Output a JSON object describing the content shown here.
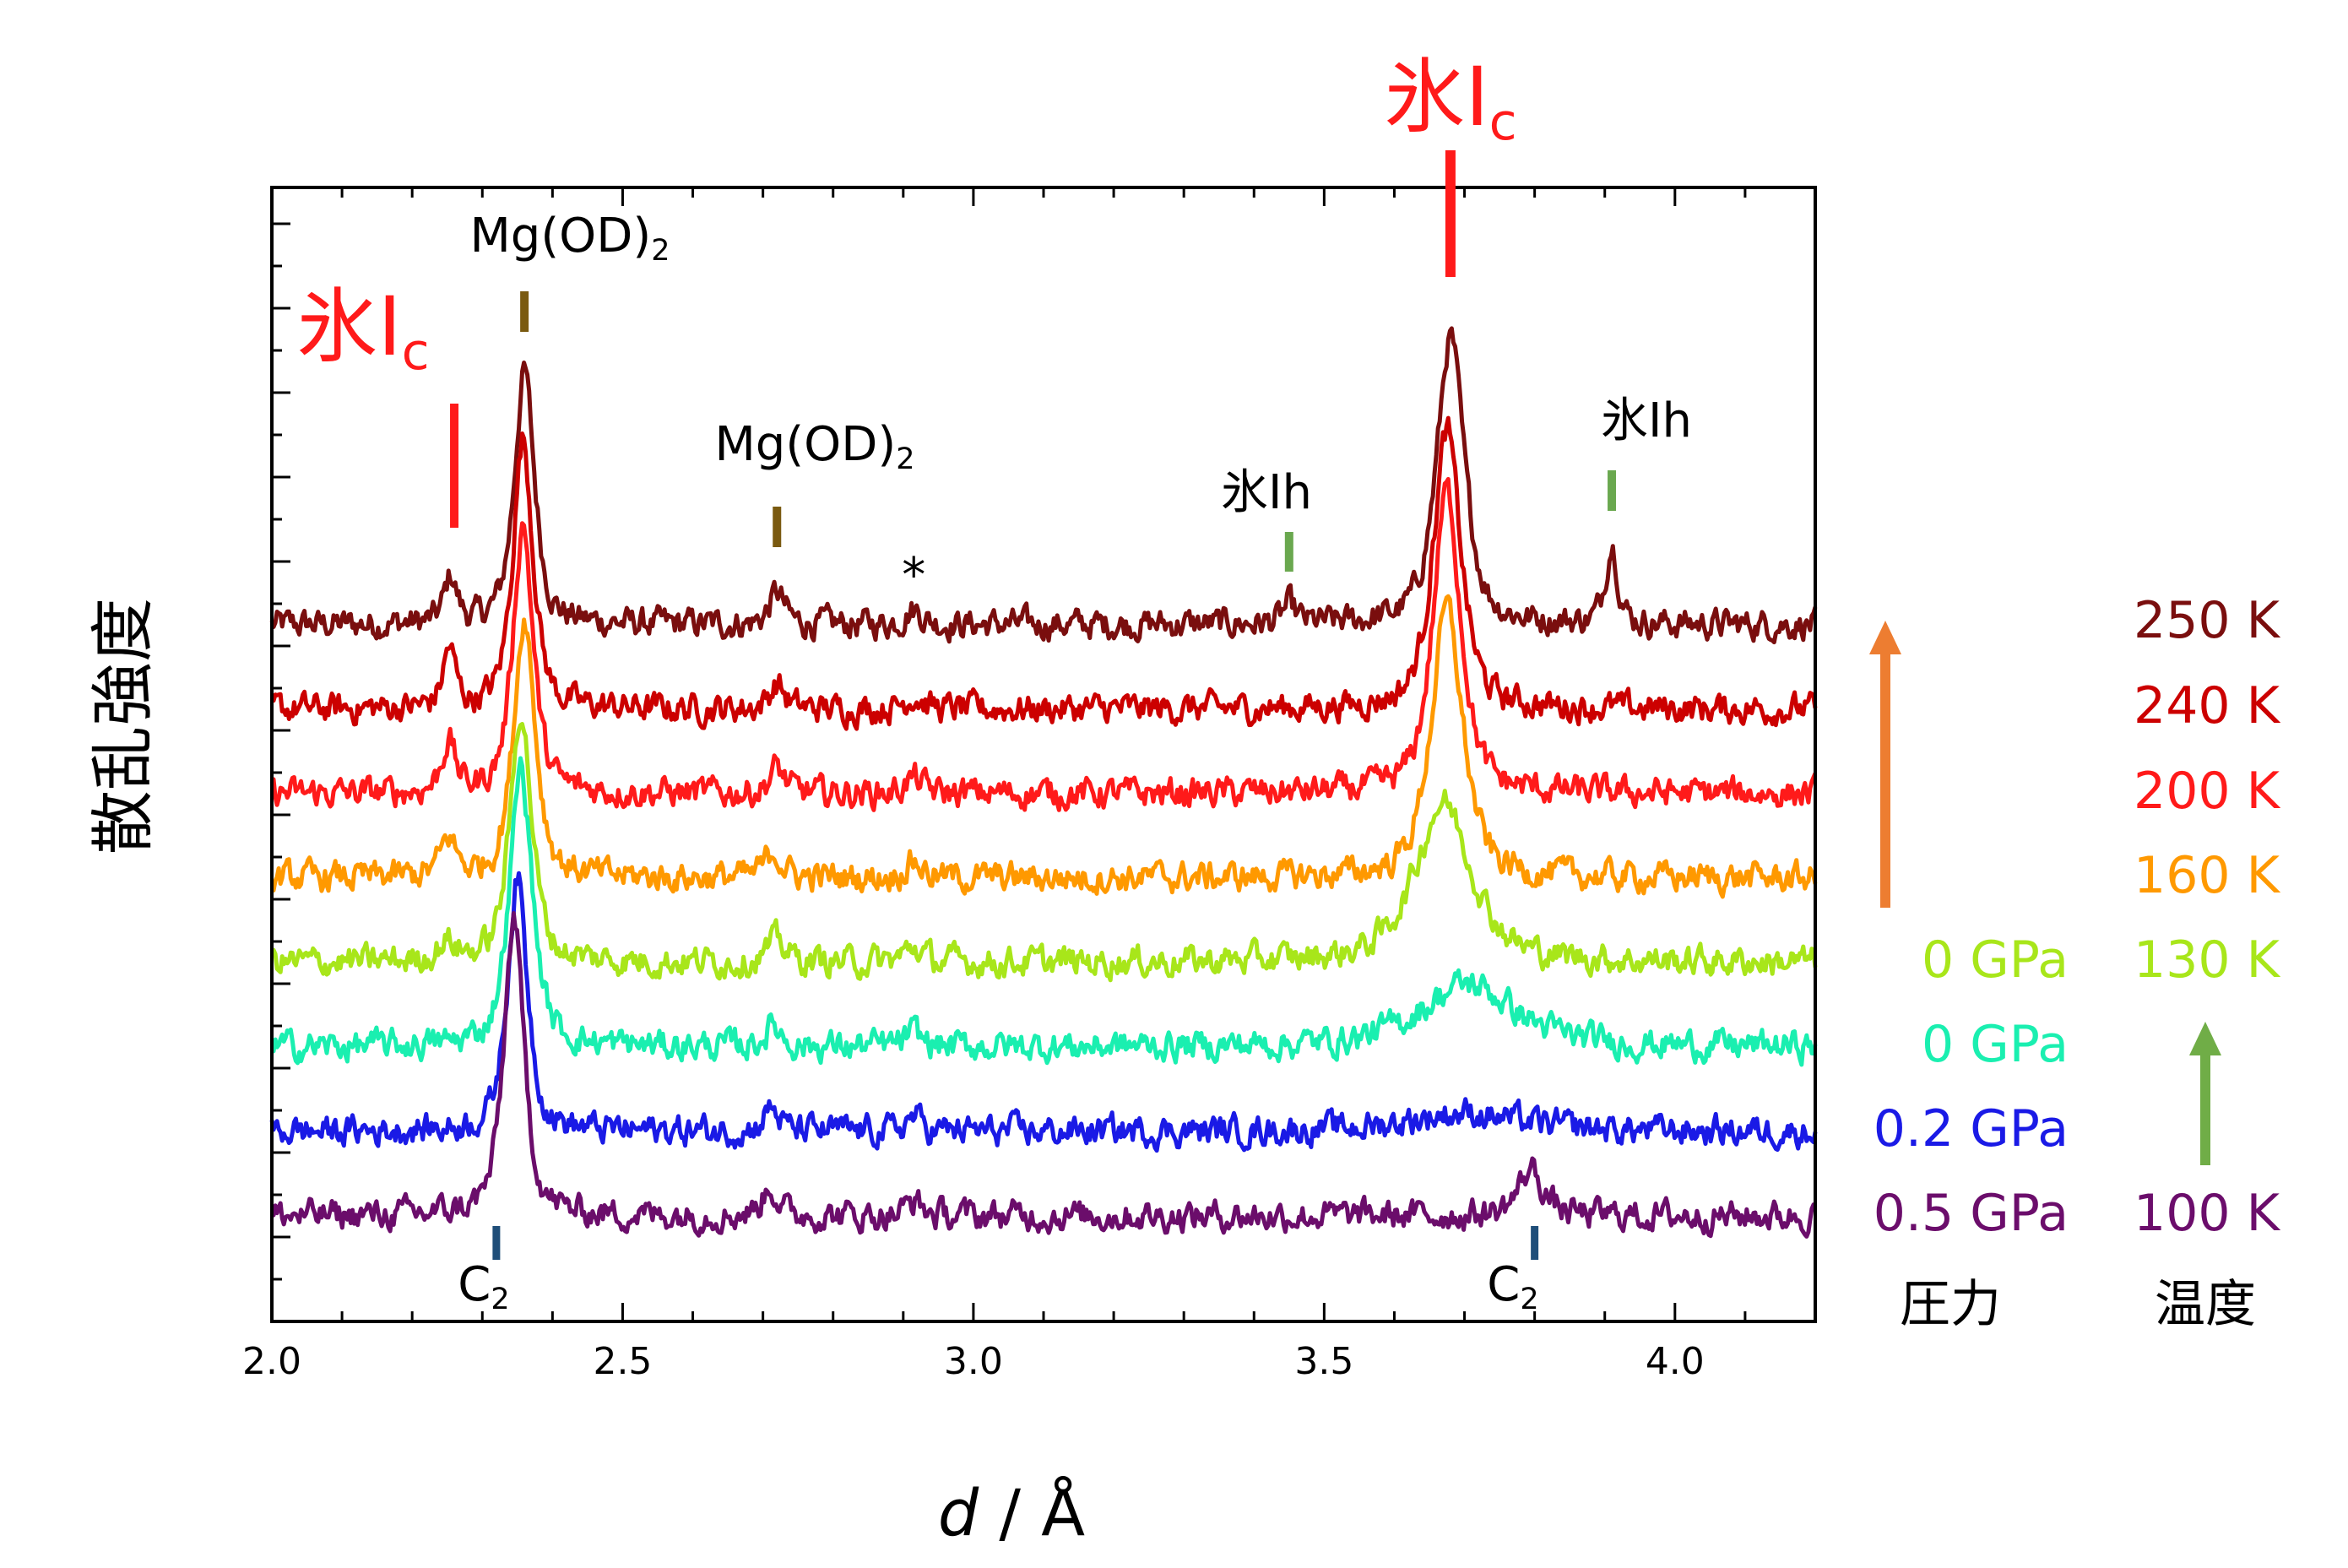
{
  "chart_data": {
    "type": "line",
    "title": "",
    "xlabel_italic": "d",
    "xlabel_rest": " / Å",
    "ylabel": "散乱強度",
    "xlim": [
      2.0,
      4.2
    ],
    "x_ticks": [
      "2.0",
      "2.5",
      "3.0",
      "3.5",
      "4.0"
    ],
    "x_tick_values": [
      2.0,
      2.5,
      3.0,
      3.5,
      4.0
    ],
    "y_ticks_labeled": false,
    "grid": false,
    "series": [
      {
        "pressure": "",
        "temperature": "250 K",
        "color": "#7a0e0e",
        "offset": 7.0,
        "peaks": [
          [
            2.255,
            0.55,
            0.01
          ],
          [
            2.36,
            3.0,
            0.016
          ],
          [
            2.72,
            0.38,
            0.012
          ],
          [
            2.915,
            0.18,
            0.014
          ],
          [
            3.45,
            0.22,
            0.01
          ],
          [
            3.68,
            3.4,
            0.022
          ],
          [
            3.91,
            0.95,
            0.01
          ]
        ]
      },
      {
        "pressure": "",
        "temperature": "240 K",
        "color": "#cc0000",
        "offset": 6.0,
        "peaks": [
          [
            2.253,
            0.7,
            0.01
          ],
          [
            2.358,
            3.2,
            0.016
          ],
          [
            2.72,
            0.3,
            0.012
          ],
          [
            2.915,
            0.16,
            0.014
          ],
          [
            3.675,
            3.3,
            0.022
          ]
        ]
      },
      {
        "pressure": "",
        "temperature": "200 K",
        "color": "#ff1a1a",
        "offset": 5.0,
        "peaks": [
          [
            2.252,
            0.6,
            0.011
          ],
          [
            2.358,
            3.2,
            0.016
          ],
          [
            2.72,
            0.3,
            0.012
          ],
          [
            2.915,
            0.18,
            0.014
          ],
          [
            3.675,
            3.6,
            0.022
          ]
        ]
      },
      {
        "pressure": "",
        "temperature": "160 K",
        "color": "#ff9900",
        "offset": 4.0,
        "peaks": [
          [
            2.252,
            0.45,
            0.012
          ],
          [
            2.36,
            3.1,
            0.017
          ],
          [
            2.715,
            0.32,
            0.013
          ],
          [
            2.915,
            0.2,
            0.014
          ],
          [
            3.675,
            3.2,
            0.025
          ]
        ]
      },
      {
        "pressure": "0 GPa",
        "temperature": "130 K",
        "color": "#a8e61a",
        "offset": 3.0,
        "peaks": [
          [
            2.25,
            0.22,
            0.015
          ],
          [
            2.355,
            3.0,
            0.017
          ],
          [
            2.72,
            0.25,
            0.015
          ],
          [
            2.915,
            0.18,
            0.014
          ],
          [
            3.67,
            1.9,
            0.045
          ]
        ]
      },
      {
        "pressure": "0 GPa",
        "temperature": "",
        "color": "#1aefb0",
        "offset": 2.0,
        "peaks": [
          [
            2.355,
            3.3,
            0.018
          ],
          [
            2.715,
            0.25,
            0.013
          ],
          [
            2.915,
            0.15,
            0.014
          ],
          [
            3.705,
            0.75,
            0.075
          ]
        ]
      },
      {
        "pressure": "0.2 GPa",
        "temperature": "",
        "color": "#1a1ae6",
        "offset": 1.0,
        "peaks": [
          [
            2.35,
            3.0,
            0.016
          ],
          [
            2.712,
            0.28,
            0.012
          ],
          [
            2.915,
            0.18,
            0.012
          ],
          [
            3.7,
            0.22,
            0.09
          ]
        ]
      },
      {
        "pressure": "0.5 GPa",
        "temperature": "100 K",
        "color": "#6b0d6b",
        "offset": 0.0,
        "peaks": [
          [
            2.345,
            3.5,
            0.016
          ],
          [
            2.71,
            0.35,
            0.012
          ],
          [
            2.915,
            0.18,
            0.012
          ],
          [
            3.795,
            0.55,
            0.02
          ]
        ]
      }
    ],
    "annotations": [
      {
        "text": "氷I",
        "sub": "c",
        "x": 2.26,
        "color": "#ff1a1a",
        "bar_color": "#ff1a1a",
        "size": "large"
      },
      {
        "text": "Mg(OD)",
        "sub": "2",
        "x": 2.36,
        "color": "#000000",
        "bar_color": "#7a5a10",
        "size": "small"
      },
      {
        "text": "Mg(OD)",
        "sub": "2",
        "x": 2.72,
        "color": "#000000",
        "bar_color": "#7a5a10",
        "size": "small"
      },
      {
        "text": "*",
        "sub": "",
        "x": 2.915,
        "color": "#000000",
        "bar_color": "",
        "size": "small"
      },
      {
        "text": "氷Ih",
        "sub": "",
        "x": 3.45,
        "color": "#000000",
        "bar_color": "#6aa84f",
        "size": "small"
      },
      {
        "text": "氷I",
        "sub": "c",
        "x": 3.68,
        "color": "#ff1a1a",
        "bar_color": "#ff1a1a",
        "size": "large"
      },
      {
        "text": "氷Ih",
        "sub": "",
        "x": 3.91,
        "color": "#000000",
        "bar_color": "#6aa84f",
        "size": "small"
      },
      {
        "text": "C",
        "sub": "2",
        "x": 2.32,
        "color": "#000000",
        "bar_color": "#1f4e79",
        "size": "small"
      },
      {
        "text": "C",
        "sub": "2",
        "x": 3.8,
        "color": "#000000",
        "bar_color": "#1f4e79",
        "size": "small"
      }
    ],
    "legend_headers": {
      "pressure": "圧力",
      "temperature": "温度"
    },
    "arrow_colors": {
      "pressure": "#ed7d31",
      "temperature": "#70ad47"
    }
  }
}
